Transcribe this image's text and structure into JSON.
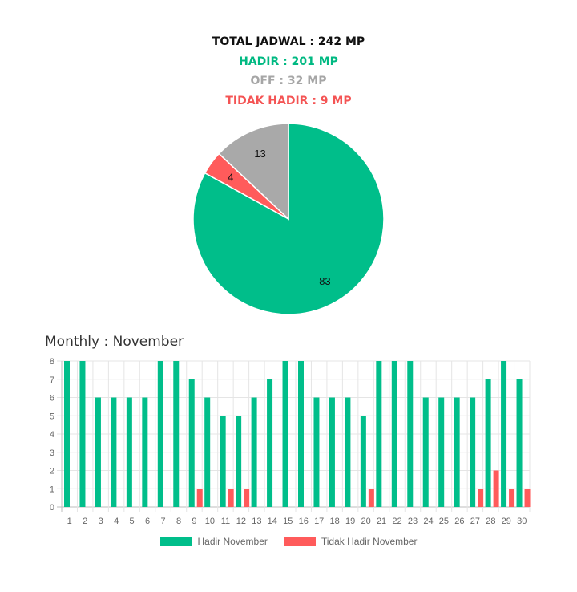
{
  "summary": {
    "total": "TOTAL JADWAL : 242 MP",
    "hadir": "HADIR : 201 MP",
    "off": "OFF : 32 MP",
    "tidak_hadir": "TIDAK HADIR : 9 MP"
  },
  "colors": {
    "hadir": "#00be8a",
    "tidak_hadir": "#ff5b5b",
    "off": "#a9a9a9",
    "off_text": "#a6a6a6",
    "hadir_text": "#00b982",
    "tidak_text": "#f45454"
  },
  "monthly_title": "Monthly : November",
  "chart_data": [
    {
      "type": "pie",
      "slices": [
        {
          "label": "83",
          "value": 83,
          "color": "#00be8a"
        },
        {
          "label": "4",
          "value": 4,
          "color": "#ff5b5b"
        },
        {
          "label": "13",
          "value": 13,
          "color": "#a9a9a9"
        }
      ]
    },
    {
      "type": "bar",
      "categories": [
        "1",
        "2",
        "3",
        "4",
        "5",
        "6",
        "7",
        "8",
        "9",
        "10",
        "11",
        "12",
        "13",
        "14",
        "15",
        "16",
        "17",
        "18",
        "19",
        "20",
        "21",
        "22",
        "23",
        "24",
        "25",
        "26",
        "27",
        "28",
        "29",
        "30"
      ],
      "series": [
        {
          "name": "Hadir November",
          "color": "#00be8a",
          "values": [
            8,
            8,
            6,
            6,
            6,
            6,
            8,
            8,
            7,
            6,
            5,
            5,
            6,
            7,
            8,
            8,
            6,
            6,
            6,
            5,
            8,
            8,
            8,
            6,
            6,
            6,
            6,
            7,
            8,
            7
          ]
        },
        {
          "name": "Tidak Hadir November",
          "color": "#ff5b5b",
          "values": [
            0,
            0,
            0,
            0,
            0,
            0,
            0,
            0,
            1,
            0,
            1,
            1,
            0,
            0,
            0,
            0,
            0,
            0,
            0,
            1,
            0,
            0,
            0,
            0,
            0,
            0,
            1,
            2,
            1,
            1
          ]
        }
      ],
      "yticks": [
        "0",
        "1",
        "2",
        "3",
        "4",
        "5",
        "6",
        "7",
        "8"
      ],
      "ylim": [
        0,
        8
      ],
      "grid": true,
      "legend_position": "bottom"
    }
  ]
}
